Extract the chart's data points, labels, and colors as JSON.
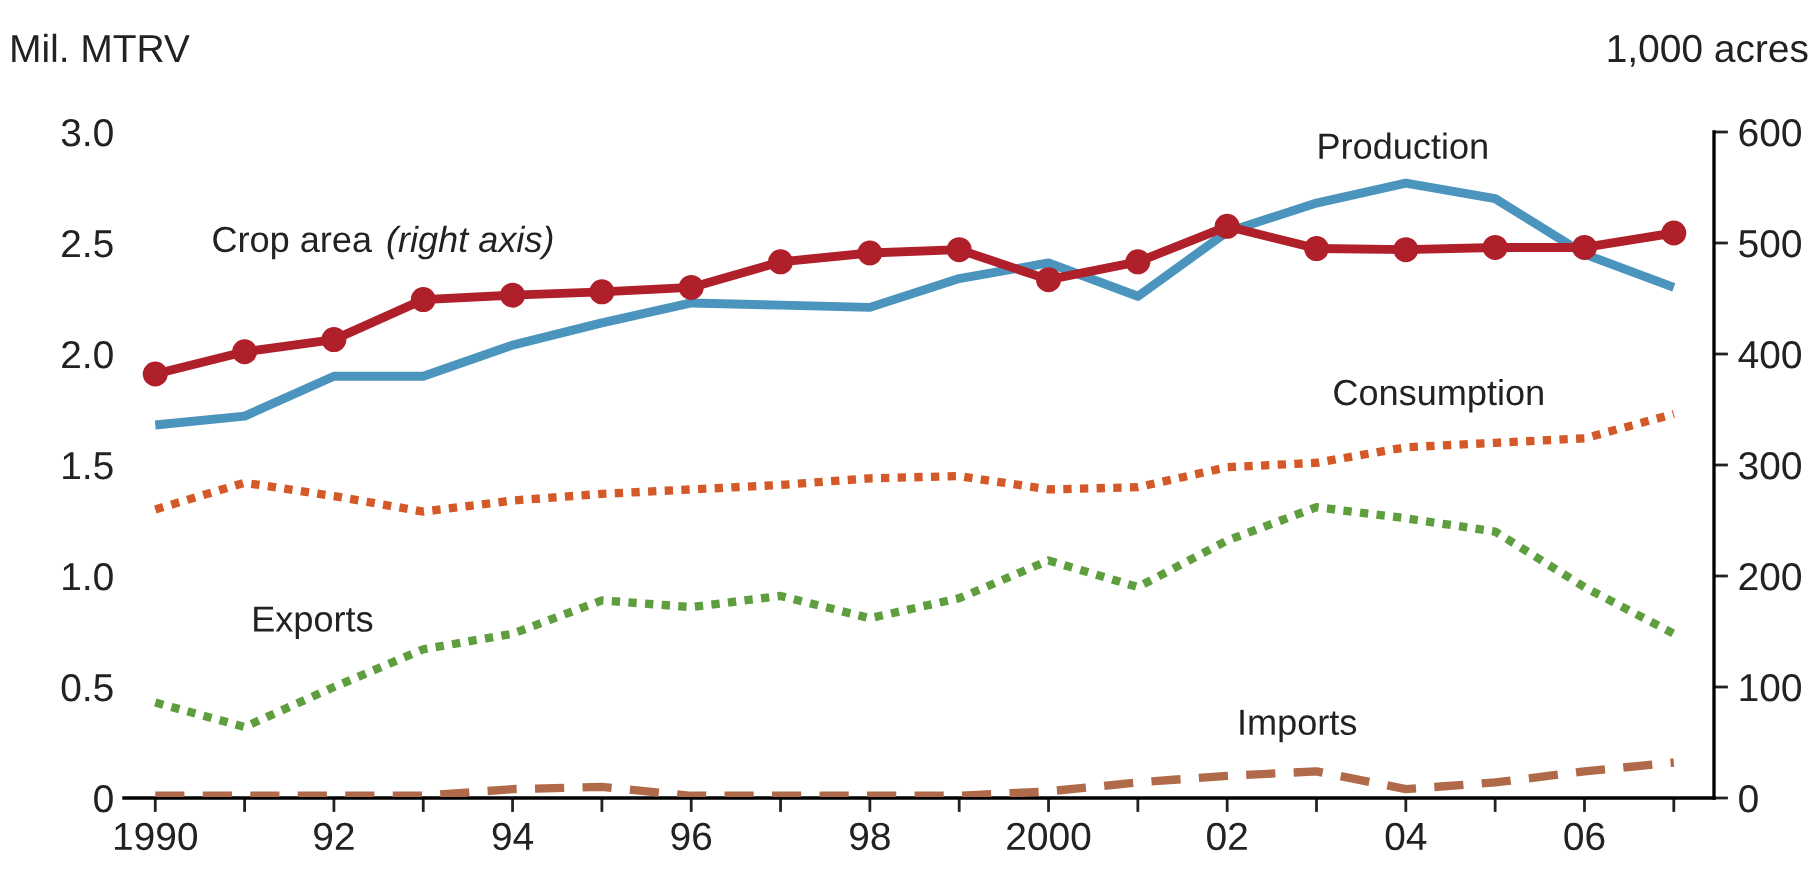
{
  "chart_data": {
    "type": "line",
    "ylabel": "Mil. MTRV",
    "y2label": "1,000 acres",
    "x": [
      1990,
      1991,
      1992,
      1993,
      1994,
      1995,
      1996,
      1997,
      1998,
      1999,
      2000,
      2001,
      2002,
      2003,
      2004,
      2005,
      2006,
      2007
    ],
    "series": [
      {
        "name": "Production",
        "color": "#4a94bd",
        "line_style": "solid",
        "values": [
          1.68,
          1.72,
          1.9,
          1.9,
          2.04,
          2.14,
          2.23,
          2.22,
          2.21,
          2.34,
          2.41,
          2.26,
          2.55,
          2.68,
          2.77,
          2.7,
          2.45,
          2.3
        ]
      },
      {
        "name": "Crop area",
        "color": "#b0202a",
        "line_style": "solid",
        "marker": "circle",
        "axis": "y2",
        "values": [
          382,
          402,
          413,
          449,
          453,
          456,
          460,
          483,
          491,
          494,
          467,
          483,
          515,
          495,
          494,
          496,
          496,
          509
        ]
      },
      {
        "name": "Consumption",
        "color": "#d35a28",
        "line_style": "dotted",
        "values": [
          1.3,
          1.42,
          1.36,
          1.29,
          1.34,
          1.37,
          1.39,
          1.41,
          1.44,
          1.45,
          1.39,
          1.4,
          1.49,
          1.51,
          1.58,
          1.6,
          1.62,
          1.73
        ]
      },
      {
        "name": "Exports",
        "color": "#5f9e3f",
        "line_style": "dotted",
        "values": [
          0.43,
          0.32,
          0.5,
          0.67,
          0.74,
          0.89,
          0.86,
          0.91,
          0.81,
          0.9,
          1.07,
          0.95,
          1.16,
          1.31,
          1.26,
          1.2,
          0.95,
          0.74
        ]
      },
      {
        "name": "Imports",
        "color": "#b06a4a",
        "line_style": "dashed",
        "values": [
          0.01,
          0.01,
          0.01,
          0.01,
          0.04,
          0.05,
          0.01,
          0.01,
          0.01,
          0.01,
          0.03,
          0.07,
          0.1,
          0.12,
          0.04,
          0.07,
          0.12,
          0.16
        ]
      }
    ],
    "annotations": [
      "(right axis)"
    ],
    "xlim": [
      1989.65,
      2007.45
    ],
    "xticks": [
      1990,
      {
        "value": 1991,
        "label": null
      },
      {
        "value": 1992,
        "label": "92"
      },
      {
        "value": 1993,
        "label": null
      },
      {
        "value": 1994,
        "label": "94"
      },
      {
        "value": 1995,
        "label": null
      },
      {
        "value": 1996,
        "label": "96"
      },
      {
        "value": 1997,
        "label": null
      },
      {
        "value": 1998,
        "label": "98"
      },
      {
        "value": 1999,
        "label": null
      },
      2000,
      {
        "value": 2001,
        "label": null
      },
      {
        "value": 2002,
        "label": "02"
      },
      {
        "value": 2003,
        "label": null
      },
      {
        "value": 2004,
        "label": "04"
      },
      {
        "value": 2005,
        "label": null
      },
      {
        "value": 2006,
        "label": "06"
      },
      {
        "value": 2007,
        "label": null
      }
    ],
    "ylim": [
      0,
      3
    ],
    "yticks": [
      0,
      {
        "value": 0.5,
        "label": "0.5"
      },
      {
        "value": 1,
        "label": "1.0"
      },
      {
        "value": 1.5,
        "label": "1.5"
      },
      {
        "value": 2,
        "label": "2.0"
      },
      {
        "value": 2.5,
        "label": "2.5"
      },
      {
        "value": 3,
        "label": "3.0"
      }
    ],
    "y2lim": [
      0,
      600
    ],
    "y2ticks": [
      0,
      100,
      200,
      300,
      400,
      500,
      600
    ],
    "grid": false,
    "legend": false
  }
}
